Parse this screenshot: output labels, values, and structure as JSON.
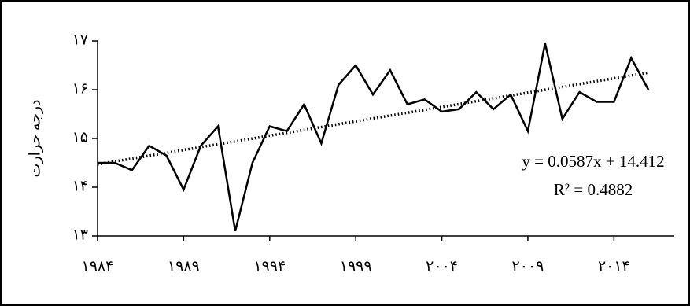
{
  "chart_data": {
    "type": "line",
    "y_label": "درجه حرارت",
    "x": [
      1984,
      1985,
      1986,
      1987,
      1988,
      1989,
      1990,
      1991,
      1992,
      1993,
      1994,
      1995,
      1996,
      1997,
      1998,
      1999,
      2000,
      2001,
      2002,
      2003,
      2004,
      2005,
      2006,
      2007,
      2008,
      2009,
      2010,
      2011,
      2012,
      2013,
      2014,
      2015,
      2016
    ],
    "series": [
      {
        "color": "#000000",
        "values": [
          14.5,
          14.5,
          14.35,
          14.85,
          14.65,
          13.95,
          14.85,
          15.25,
          13.1,
          14.5,
          15.25,
          15.15,
          15.7,
          14.9,
          16.1,
          16.5,
          15.9,
          16.4,
          15.7,
          15.8,
          15.55,
          15.6,
          15.95,
          15.6,
          15.9,
          15.15,
          16.95,
          15.4,
          15.95,
          15.75,
          15.75,
          16.65,
          16.0
        ]
      }
    ],
    "trendline": {
      "x": [
        1984,
        2016
      ],
      "values": [
        14.47,
        16.35
      ],
      "color": "#000000",
      "style": "dotted"
    },
    "annotations": [
      "y = 0.0587x + 14.412",
      "R² = 0.4882"
    ],
    "xlim": [
      1983.5,
      2017
    ],
    "ylim": [
      13,
      17
    ],
    "xticks": [
      {
        "value": 1984,
        "label": "۱۹۸۴"
      },
      {
        "value": 1989,
        "label": "۱۹۸۹"
      },
      {
        "value": 1994,
        "label": "۱۹۹۴"
      },
      {
        "value": 1999,
        "label": "۱۹۹۹"
      },
      {
        "value": 2004,
        "label": "۲۰۰۴"
      },
      {
        "value": 2009,
        "label": "۲۰۰۹"
      },
      {
        "value": 2014,
        "label": "۲۰۱۴"
      }
    ],
    "yticks": [
      {
        "value": 13,
        "label": "۱۳"
      },
      {
        "value": 14,
        "label": "۱۴"
      },
      {
        "value": 15,
        "label": "۱۵"
      },
      {
        "value": 16,
        "label": "۱۶"
      },
      {
        "value": 17,
        "label": "۱۷"
      }
    ],
    "grid": false
  }
}
